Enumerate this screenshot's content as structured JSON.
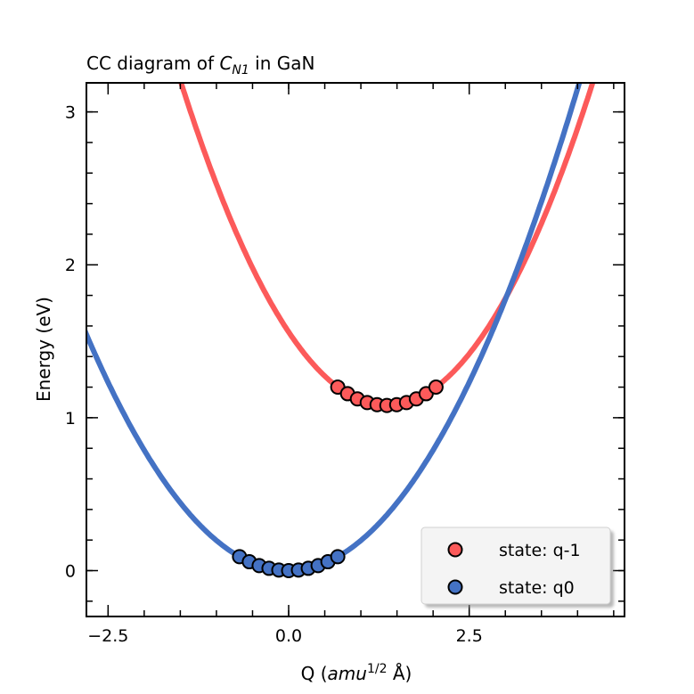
{
  "chart_data": {
    "type": "line",
    "title": {
      "prefix": "CC diagram of ",
      "math": "C",
      "sub": "N1",
      "suffix": " in GaN"
    },
    "xlabel": {
      "prefix": "Q (",
      "math": "amu",
      "sup": "1/2",
      "suffix": " Å)"
    },
    "ylabel": "Energy (eV)",
    "xlim": [
      -2.8,
      4.65
    ],
    "ylim": [
      -0.3,
      3.19
    ],
    "xticks": [
      -2.5,
      0.0,
      2.5
    ],
    "xtick_labels": [
      "−2.5",
      "0.0",
      "2.5"
    ],
    "yticks": [
      0,
      1,
      2,
      3
    ],
    "ytick_labels": [
      "0",
      "1",
      "2",
      "3"
    ],
    "x_minor_step": 0.5,
    "y_minor_step": 0.2,
    "grid": false,
    "legend_position": "lower-right",
    "series": [
      {
        "name": "state: q-1",
        "color": "#fc5a5a",
        "curve": {
          "type": "parabola",
          "Q0": 1.36,
          "E0": 1.08,
          "k": 0.26
        },
        "points": {
          "x": [
            0.68,
            0.816,
            0.952,
            1.088,
            1.224,
            1.36,
            1.496,
            1.632,
            1.768,
            1.904,
            2.04
          ],
          "y": [
            1.2,
            1.157,
            1.123,
            1.099,
            1.085,
            1.08,
            1.085,
            1.099,
            1.123,
            1.157,
            1.2
          ]
        }
      },
      {
        "name": "state: q0",
        "color": "#4472c4",
        "curve": {
          "type": "parabola",
          "Q0": 0.0,
          "E0": 0.0,
          "k": 0.197
        },
        "points": {
          "x": [
            -0.68,
            -0.544,
            -0.408,
            -0.272,
            -0.136,
            0.0,
            0.136,
            0.272,
            0.408,
            0.544,
            0.68
          ],
          "y": [
            0.091,
            0.058,
            0.033,
            0.015,
            0.004,
            0.0,
            0.004,
            0.015,
            0.033,
            0.058,
            0.091
          ]
        }
      }
    ]
  }
}
